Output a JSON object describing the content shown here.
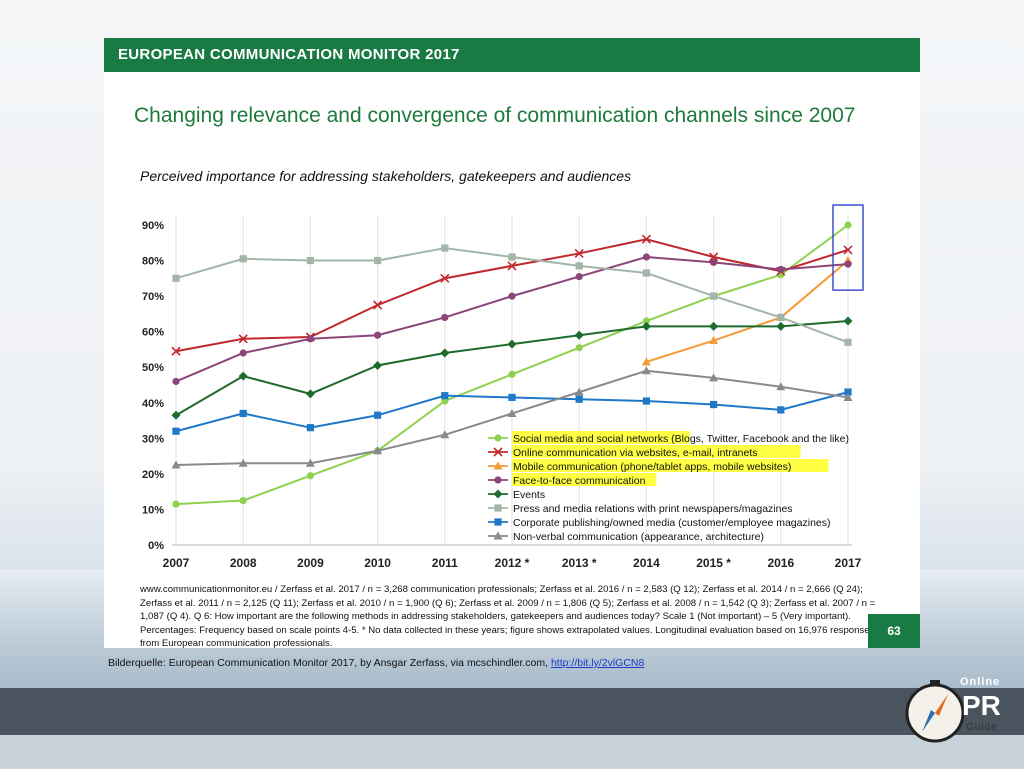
{
  "header": {
    "title": "EUROPEAN COMMUNICATION MONITOR 2017"
  },
  "slide": {
    "title": "Changing relevance and convergence of communication channels since 2007",
    "subtitle": "Perceived importance for addressing stakeholders, gatekeepers and audiences",
    "page_number": "63",
    "footnote": "www.communicationmonitor.eu / Zerfass et al. 2017 / n = 3,268 communication professionals; Zerfass et al. 2016 / n = 2,583 (Q 12); Zerfass et al. 2014 / n = 2,666 (Q 24); Zerfass et al. 2011 / n = 2,125 (Q 11); Zerfass et al. 2010 / n = 1,900 (Q 6); Zerfass et al. 2009 / n = 1,806 (Q 5); Zerfass et al. 2008 / n = 1,542 (Q 3); Zerfass et al. 2007 / n = 1,087 (Q 4). Q 6: How important are the following methods in addressing stakeholders, gatekeepers and audiences today? Scale 1 (Not important) – 5 (Very important). Percentages: Frequency based on scale points 4-5. * No data collected in these years; figure shows extrapolated values. Longitudinal evaluation based on 16,976 responses from European communication professionals."
  },
  "caption": {
    "text": "Bilderquelle: European Communication Monitor 2017, by Ansgar Zerfass, via mcschindler.com,",
    "link": "http://bit.ly/2vlGCN8"
  },
  "logo": {
    "line1": "Online",
    "line2": "PR",
    "line3": "Guide"
  },
  "colors": {
    "brand_green": "#1a7a44",
    "highlight": "#ffff44",
    "box": "#3344cc"
  },
  "chart_data": {
    "type": "line",
    "categories": [
      "2007",
      "2008",
      "2009",
      "2010",
      "2011",
      "2012 *",
      "2013 *",
      "2014",
      "2015 *",
      "2016",
      "2017"
    ],
    "ylim": [
      0,
      90
    ],
    "yticks": [
      "0%",
      "10%",
      "20%",
      "30%",
      "40%",
      "50%",
      "60%",
      "70%",
      "80%",
      "90%"
    ],
    "grid": "vertical",
    "legend_position": "bottom-right",
    "series": [
      {
        "name": "Social media and social networks",
        "suffix": " (Blogs, Twitter, Facebook and the like)",
        "highlight": true,
        "color": "#8fd14f",
        "marker": "circle",
        "values": [
          11.5,
          12.5,
          19.5,
          26.5,
          40.5,
          48,
          55.5,
          63,
          70,
          76,
          90
        ]
      },
      {
        "name": "Online communication via websites, e-mail, intranets",
        "suffix": "",
        "highlight": true,
        "color": "#c0282d",
        "marker": "x",
        "values": [
          54.5,
          58,
          58.5,
          67.5,
          75,
          78.5,
          82,
          86,
          81,
          77,
          83
        ]
      },
      {
        "name": "Mobile communication (phone/tablet apps, mobile websites)",
        "suffix": "",
        "highlight": true,
        "color": "#f59a3a",
        "marker": "triangle",
        "values": [
          null,
          null,
          null,
          null,
          null,
          null,
          null,
          51.5,
          57.5,
          64,
          80
        ]
      },
      {
        "name": "Face-to-face communication",
        "suffix": "",
        "highlight": true,
        "color": "#8b4579",
        "marker": "circle",
        "values": [
          46,
          54,
          58,
          59,
          64,
          70,
          75.5,
          81,
          79.5,
          77.5,
          79
        ]
      },
      {
        "name": "Events",
        "suffix": "",
        "highlight": false,
        "color": "#1e6b2e",
        "marker": "diamond",
        "values": [
          36.5,
          47.5,
          42.5,
          50.5,
          54,
          56.5,
          59,
          61.5,
          61.5,
          61.5,
          63
        ]
      },
      {
        "name": "Press and media relations with print newspapers/magazines",
        "suffix": "",
        "highlight": false,
        "color": "#a3b5a8",
        "marker": "square",
        "values": [
          75,
          80.5,
          80,
          80,
          83.5,
          81,
          78.5,
          76.5,
          70,
          64,
          57
        ]
      },
      {
        "name": "Corporate publishing/owned media (customer/employee magazines)",
        "suffix": "",
        "highlight": false,
        "color": "#1f78c8",
        "marker": "square",
        "values": [
          32,
          37,
          33,
          36.5,
          42,
          41.5,
          41,
          40.5,
          39.5,
          38,
          43
        ]
      },
      {
        "name": "Non-verbal communication (appearance, architecture)",
        "suffix": "",
        "highlight": false,
        "color": "#8a8a8a",
        "marker": "triangle",
        "values": [
          22.5,
          23,
          23,
          26.5,
          31,
          37,
          43,
          49,
          47,
          44.5,
          41.5
        ]
      }
    ],
    "annotation": {
      "type": "box",
      "category": "2017"
    }
  }
}
